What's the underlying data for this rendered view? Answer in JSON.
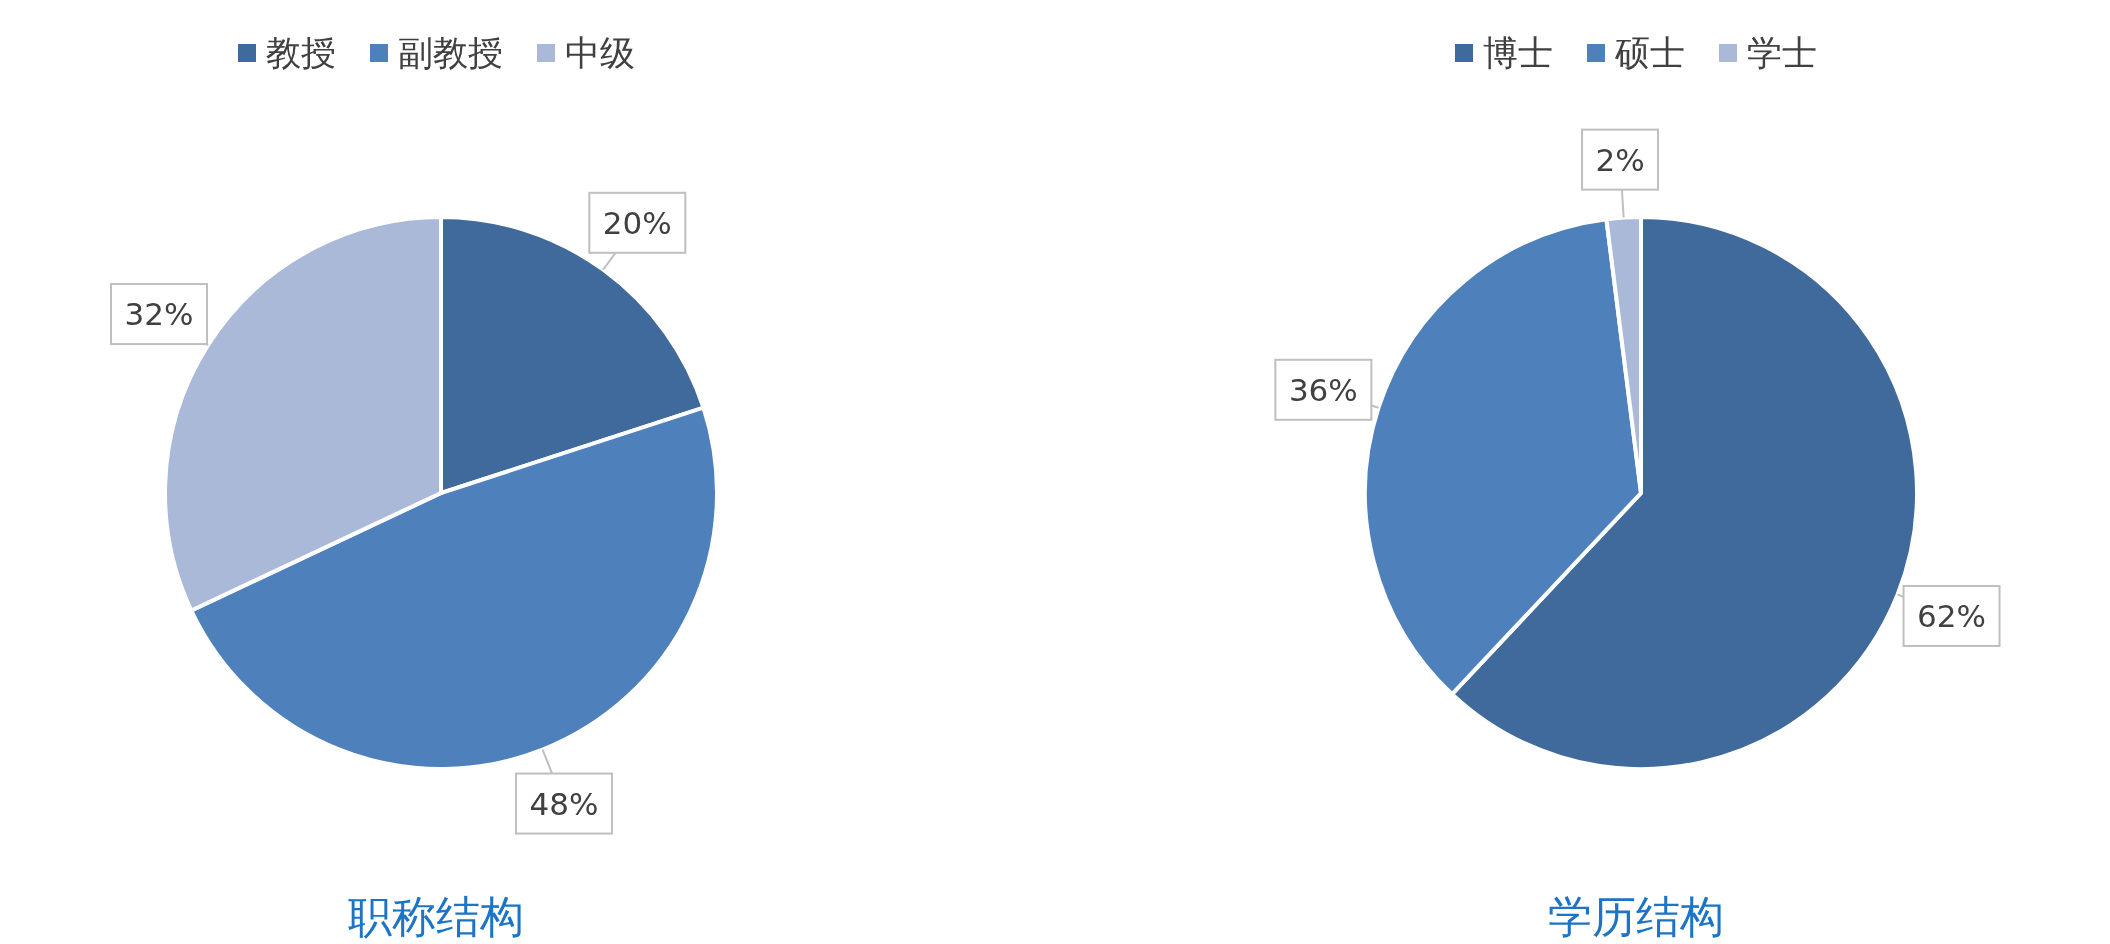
{
  "chart_data": [
    {
      "type": "pie",
      "title": "职称结构",
      "categories": [
        "教授",
        "副教授",
        "中级"
      ],
      "values": [
        20,
        48,
        32
      ],
      "value_labels": [
        "20%",
        "48%",
        "32%"
      ],
      "colors": [
        "#3f6a9b",
        "#4e80bc",
        "#a9b9d7"
      ],
      "legend": "top"
    },
    {
      "type": "pie",
      "title": "学历结构",
      "categories": [
        "博士",
        "硕士",
        "学士"
      ],
      "values": [
        62,
        36,
        2
      ],
      "value_labels": [
        "62%",
        "36%",
        "2%"
      ],
      "colors": [
        "#3f6a9b",
        "#4e80bc",
        "#a9b9d7"
      ],
      "legend": "top"
    }
  ]
}
